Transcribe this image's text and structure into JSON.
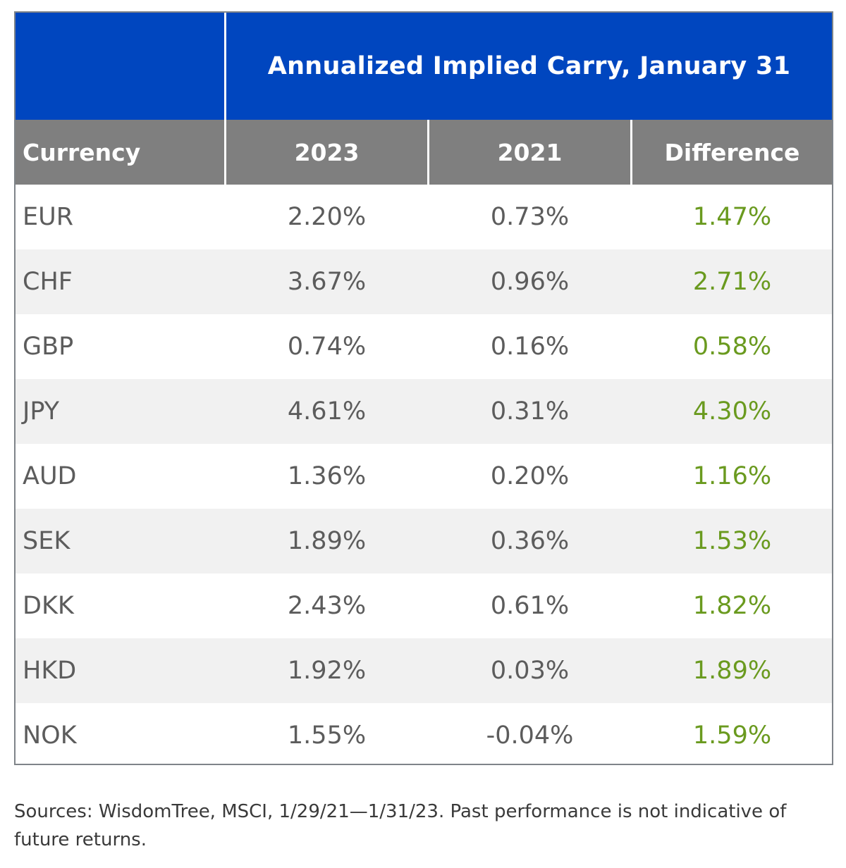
{
  "chart_data": {
    "type": "table",
    "title": "Annualized Implied Carry, January 31",
    "columns": [
      "Currency",
      "2023",
      "2021",
      "Difference"
    ],
    "rows": [
      [
        "EUR",
        "2.20%",
        "0.73%",
        "1.47%"
      ],
      [
        "CHF",
        "3.67%",
        "0.96%",
        "2.71%"
      ],
      [
        "GBP",
        "0.74%",
        "0.16%",
        "0.58%"
      ],
      [
        "JPY",
        "4.61%",
        "0.31%",
        "4.30%"
      ],
      [
        "AUD",
        "1.36%",
        "0.20%",
        "1.16%"
      ],
      [
        "SEK",
        "1.89%",
        "0.36%",
        "1.53%"
      ],
      [
        "DKK",
        "2.43%",
        "0.61%",
        "1.82%"
      ],
      [
        "HKD",
        "1.92%",
        "0.03%",
        "1.89%"
      ],
      [
        "NOK",
        "1.55%",
        "-0.04%",
        "1.59%"
      ]
    ],
    "header_color": "#0046bf",
    "column_header_color": "#7f7f7f",
    "difference_color": "#6a9a1f",
    "striped_row_color": "#f1f1f1"
  },
  "footnote": "Sources: WisdomTree, MSCI, 1/29/21—1/31/23. Past performance is not indicative of future returns."
}
